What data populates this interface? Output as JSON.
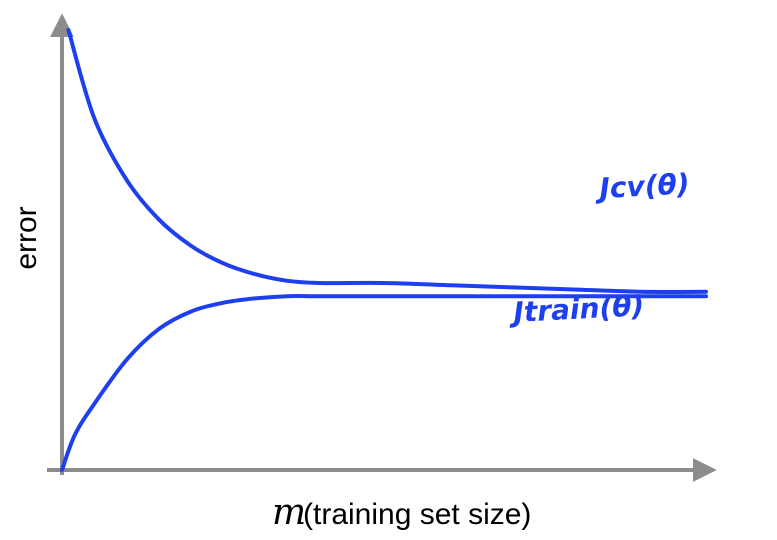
{
  "chart_data": {
    "type": "line",
    "xlabel_var": "m",
    "xlabel": "(training set size)",
    "ylabel": "error",
    "axis_color": "#8c8c8c",
    "series": [
      {
        "name": "Jcv(θ)",
        "color": "#1e3ff0",
        "x": [
          0.01,
          0.05,
          0.1,
          0.15,
          0.2,
          0.25,
          0.3,
          0.35,
          0.4,
          0.5,
          0.6,
          0.7,
          0.8,
          0.9,
          1.0
        ],
        "y": [
          1.0,
          0.8,
          0.66,
          0.57,
          0.51,
          0.47,
          0.445,
          0.43,
          0.425,
          0.425,
          0.42,
          0.415,
          0.41,
          0.405,
          0.405
        ]
      },
      {
        "name": "Jtrain(θ)",
        "color": "#1e3ff0",
        "x": [
          0.0,
          0.02,
          0.05,
          0.1,
          0.15,
          0.2,
          0.25,
          0.3,
          0.35,
          0.4,
          0.5,
          0.6,
          0.7,
          0.8,
          0.9,
          1.0
        ],
        "y": [
          0.0,
          0.08,
          0.15,
          0.25,
          0.32,
          0.36,
          0.38,
          0.39,
          0.395,
          0.395,
          0.395,
          0.395,
          0.395,
          0.395,
          0.395,
          0.395
        ]
      }
    ]
  }
}
